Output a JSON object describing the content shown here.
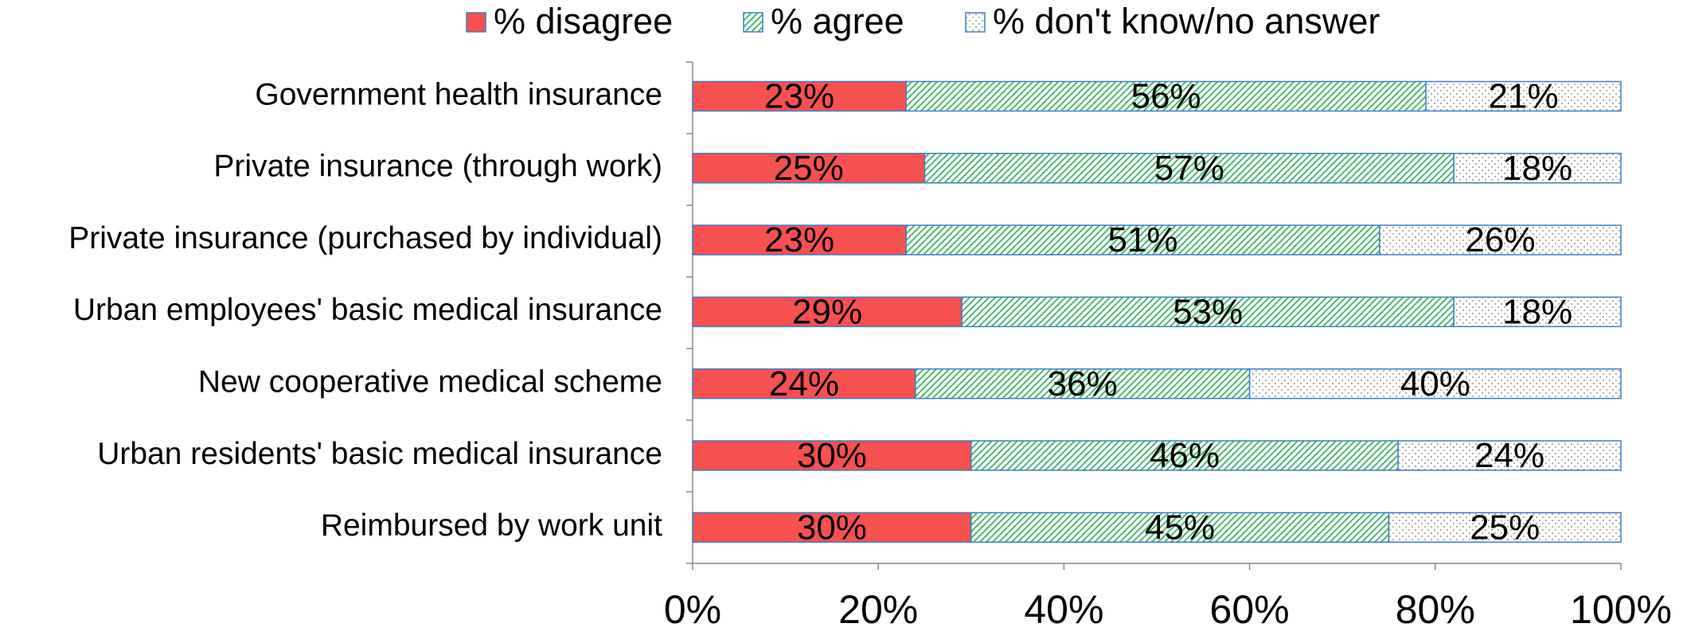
{
  "chart_data": {
    "type": "stacked-bar-horizontal",
    "categories": [
      "Government health insurance",
      "Private insurance (through work)",
      "Private insurance (purchased by individual)",
      "Urban employees' basic medical insurance",
      "New cooperative medical scheme",
      "Urban residents' basic medical insurance ",
      "Reimbursed by work unit"
    ],
    "series": [
      {
        "name": "% disagree",
        "color": "#f75150",
        "pattern": "solid",
        "values": [
          23,
          25,
          23,
          29,
          24,
          30,
          30
        ],
        "value_labels": [
          "23%",
          "25%",
          "23%",
          "29%",
          "24%",
          "30%",
          "30%"
        ]
      },
      {
        "name": "% agree",
        "color": "#4cb870",
        "pattern": "hatch",
        "values": [
          56,
          57,
          51,
          53,
          36,
          46,
          45
        ],
        "value_labels": [
          "56%",
          "57%",
          "51%",
          "53%",
          "36%",
          "46%",
          "45%"
        ]
      },
      {
        "name": "% don't know/no answer",
        "color": "#7a7a7a",
        "pattern": "dots",
        "values": [
          21,
          18,
          26,
          18,
          40,
          24,
          25
        ],
        "value_labels": [
          "21%",
          "18%",
          "26%",
          "18%",
          "40%",
          "24%",
          "25%"
        ]
      }
    ],
    "xlim": [
      0,
      100
    ],
    "xticks": [
      {
        "value": 0,
        "label": "0%"
      },
      {
        "value": 20,
        "label": "20%"
      },
      {
        "value": 40,
        "label": "40%"
      },
      {
        "value": 60,
        "label": "60%"
      },
      {
        "value": 80,
        "label": "80%"
      },
      {
        "value": 100,
        "label": "100%"
      }
    ],
    "legend": "top"
  }
}
